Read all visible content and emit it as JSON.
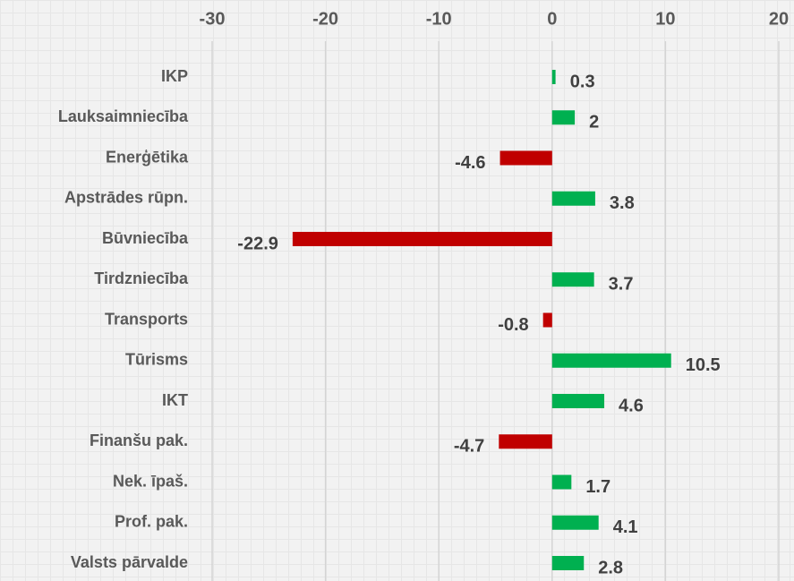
{
  "chart_data": {
    "type": "hbar",
    "categories": [
      "IKP",
      "Lauksaimniecība",
      "Enerģētika",
      "Apstrādes rūpn.",
      "Būvniecība",
      "Tirdzniecība",
      "Transports",
      "Tūrisms",
      "IKT",
      "Finanšu pak.",
      "Nek. īpaš.",
      "Prof. pak.",
      "Valsts pārvalde"
    ],
    "values": [
      0.3,
      2,
      -4.6,
      3.8,
      -22.9,
      3.7,
      -0.8,
      10.5,
      4.6,
      -4.7,
      1.7,
      4.1,
      2.8
    ],
    "positive_color": "#00b050",
    "negative_color": "#c00000",
    "xlim": [
      -30,
      20
    ],
    "xticks": [
      -30,
      -20,
      -10,
      0,
      10,
      20
    ],
    "grid": true
  }
}
